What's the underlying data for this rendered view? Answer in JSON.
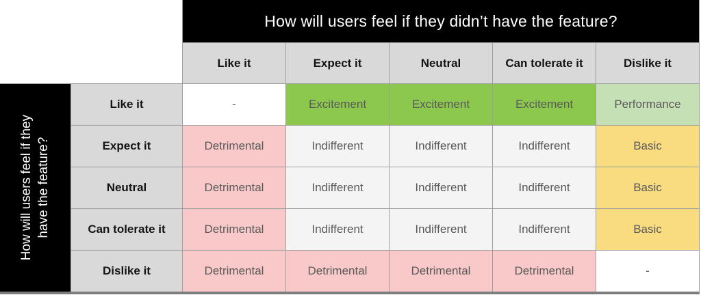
{
  "matrix": {
    "top_header": "How will users feel if they didn’t have the feature?",
    "left_header": {
      "line1": "How will users feel if they",
      "line2": "have the feature?"
    },
    "column_headers": [
      "Like it",
      "Expect it",
      "Neutral",
      "Can tolerate it",
      "Dislike it"
    ],
    "row_headers": [
      "Like it",
      "Expect it",
      "Neutral",
      "Can tolerate it",
      "Dislike it"
    ],
    "cells": [
      [
        {
          "label": "-",
          "type": "none"
        },
        {
          "label": "Excitement",
          "type": "excitement"
        },
        {
          "label": "Excitement",
          "type": "excitement"
        },
        {
          "label": "Excitement",
          "type": "excitement"
        },
        {
          "label": "Performance",
          "type": "performance"
        }
      ],
      [
        {
          "label": "Detrimental",
          "type": "detrimental"
        },
        {
          "label": "Indifferent",
          "type": "indifferent"
        },
        {
          "label": "Indifferent",
          "type": "indifferent"
        },
        {
          "label": "Indifferent",
          "type": "indifferent"
        },
        {
          "label": "Basic",
          "type": "basic"
        }
      ],
      [
        {
          "label": "Detrimental",
          "type": "detrimental"
        },
        {
          "label": "Indifferent",
          "type": "indifferent"
        },
        {
          "label": "Indifferent",
          "type": "indifferent"
        },
        {
          "label": "Indifferent",
          "type": "indifferent"
        },
        {
          "label": "Basic",
          "type": "basic"
        }
      ],
      [
        {
          "label": "Detrimental",
          "type": "detrimental"
        },
        {
          "label": "Indifferent",
          "type": "indifferent"
        },
        {
          "label": "Indifferent",
          "type": "indifferent"
        },
        {
          "label": "Indifferent",
          "type": "indifferent"
        },
        {
          "label": "Basic",
          "type": "basic"
        }
      ],
      [
        {
          "label": "Detrimental",
          "type": "detrimental"
        },
        {
          "label": "Detrimental",
          "type": "detrimental"
        },
        {
          "label": "Detrimental",
          "type": "detrimental"
        },
        {
          "label": "Detrimental",
          "type": "detrimental"
        },
        {
          "label": "-",
          "type": "none"
        }
      ]
    ],
    "colors": {
      "excitement": "#8cc74e",
      "performance": "#c5e0b4",
      "indifferent": "#f4f4f4",
      "detrimental": "#f9c9c9",
      "basic": "#f9dc80",
      "none": "#ffffff",
      "header_bg": "#d9d9d9",
      "axis_band_bg": "#000000",
      "axis_band_text": "#ffffff",
      "cell_text": "#595959",
      "grid_line": "#9e9e9e"
    }
  }
}
